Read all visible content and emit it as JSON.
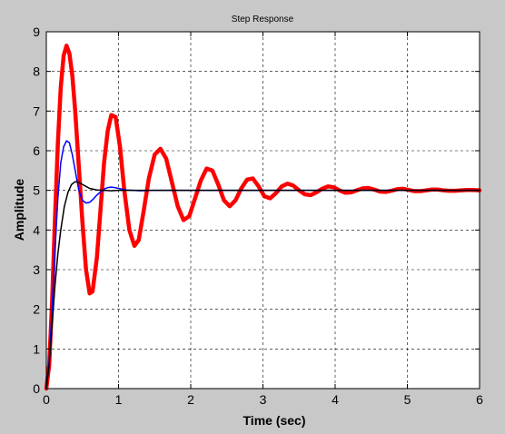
{
  "window": {
    "background": "#c8c8c8"
  },
  "chart_data": {
    "type": "line",
    "title": "Step Response",
    "xlabel": "Time (sec)",
    "ylabel": "Amplitude",
    "xlim": [
      0,
      6
    ],
    "ylim": [
      0,
      9
    ],
    "xticks": [
      0,
      1,
      2,
      3,
      4,
      5,
      6
    ],
    "yticks": [
      0,
      1,
      2,
      3,
      4,
      5,
      6,
      7,
      8,
      9
    ],
    "grid": true,
    "grid_style": "dashed",
    "legend": "none",
    "series": [
      {
        "color": "#ff0000",
        "line_weight": "heavy",
        "x": [
          0,
          0.04,
          0.08,
          0.12,
          0.16,
          0.2,
          0.24,
          0.28,
          0.32,
          0.36,
          0.4,
          0.45,
          0.5,
          0.55,
          0.6,
          0.64,
          0.7,
          0.75,
          0.8,
          0.85,
          0.9,
          0.96,
          1.02,
          1.08,
          1.15,
          1.22,
          1.28,
          1.35,
          1.42,
          1.5,
          1.58,
          1.66,
          1.74,
          1.82,
          1.9,
          1.98,
          2.06,
          2.14,
          2.22,
          2.3,
          2.38,
          2.46,
          2.54,
          2.62,
          2.7,
          2.78,
          2.86,
          2.94,
          3.02,
          3.1,
          3.18,
          3.26,
          3.34,
          3.42,
          3.5,
          3.58,
          3.66,
          3.74,
          3.82,
          3.9,
          3.98,
          4.06,
          4.14,
          4.22,
          4.3,
          4.38,
          4.46,
          4.54,
          4.62,
          4.7,
          4.78,
          4.86,
          4.94,
          5.02,
          5.1,
          5.18,
          5.26,
          5.34,
          5.42,
          5.5,
          5.58,
          5.66,
          5.74,
          5.82,
          5.9,
          6.0
        ],
        "y": [
          0,
          0.6,
          2.2,
          4.3,
          6.2,
          7.6,
          8.4,
          8.65,
          8.45,
          7.9,
          7.0,
          5.6,
          4.2,
          3.0,
          2.4,
          2.45,
          3.3,
          4.5,
          5.7,
          6.5,
          6.9,
          6.85,
          6.1,
          5.0,
          4.0,
          3.6,
          3.75,
          4.5,
          5.3,
          5.9,
          6.05,
          5.8,
          5.2,
          4.6,
          4.25,
          4.35,
          4.8,
          5.25,
          5.55,
          5.5,
          5.15,
          4.75,
          4.6,
          4.75,
          5.05,
          5.27,
          5.3,
          5.1,
          4.85,
          4.8,
          4.93,
          5.1,
          5.17,
          5.12,
          5.0,
          4.9,
          4.88,
          4.95,
          5.04,
          5.1,
          5.08,
          5.0,
          4.94,
          4.95,
          5.0,
          5.05,
          5.06,
          5.02,
          4.97,
          4.96,
          4.99,
          5.03,
          5.04,
          5.01,
          4.98,
          4.98,
          5.0,
          5.02,
          5.02,
          5.0,
          4.99,
          4.99,
          5.0,
          5.01,
          5.01,
          5.0
        ]
      },
      {
        "color": "#0000ff",
        "line_weight": "thin",
        "x": [
          0,
          0.04,
          0.08,
          0.12,
          0.16,
          0.2,
          0.24,
          0.28,
          0.32,
          0.36,
          0.4,
          0.45,
          0.5,
          0.55,
          0.6,
          0.65,
          0.7,
          0.75,
          0.8,
          0.85,
          0.9,
          0.95,
          1.0,
          1.05,
          1.1,
          1.2,
          1.3,
          1.5,
          1.8,
          2.2,
          6.0
        ],
        "y": [
          0,
          0.7,
          2.0,
          3.5,
          4.8,
          5.7,
          6.1,
          6.25,
          6.2,
          5.9,
          5.5,
          5.0,
          4.75,
          4.68,
          4.7,
          4.78,
          4.88,
          4.96,
          5.03,
          5.07,
          5.08,
          5.07,
          5.05,
          5.03,
          5.01,
          5.0,
          4.99,
          5.0,
          5.0,
          5.0,
          5.0
        ]
      },
      {
        "color": "#000000",
        "line_weight": "thin",
        "x": [
          0,
          0.04,
          0.08,
          0.12,
          0.16,
          0.2,
          0.25,
          0.3,
          0.35,
          0.4,
          0.45,
          0.5,
          0.55,
          0.6,
          0.7,
          0.8,
          0.9,
          1.0,
          1.2,
          1.5,
          2.0,
          6.0
        ],
        "y": [
          0,
          0.6,
          1.6,
          2.6,
          3.4,
          4.0,
          4.6,
          4.95,
          5.15,
          5.22,
          5.2,
          5.15,
          5.1,
          5.05,
          5.01,
          5.0,
          4.99,
          5.0,
          5.0,
          5.0,
          5.0,
          5.0
        ]
      }
    ]
  }
}
